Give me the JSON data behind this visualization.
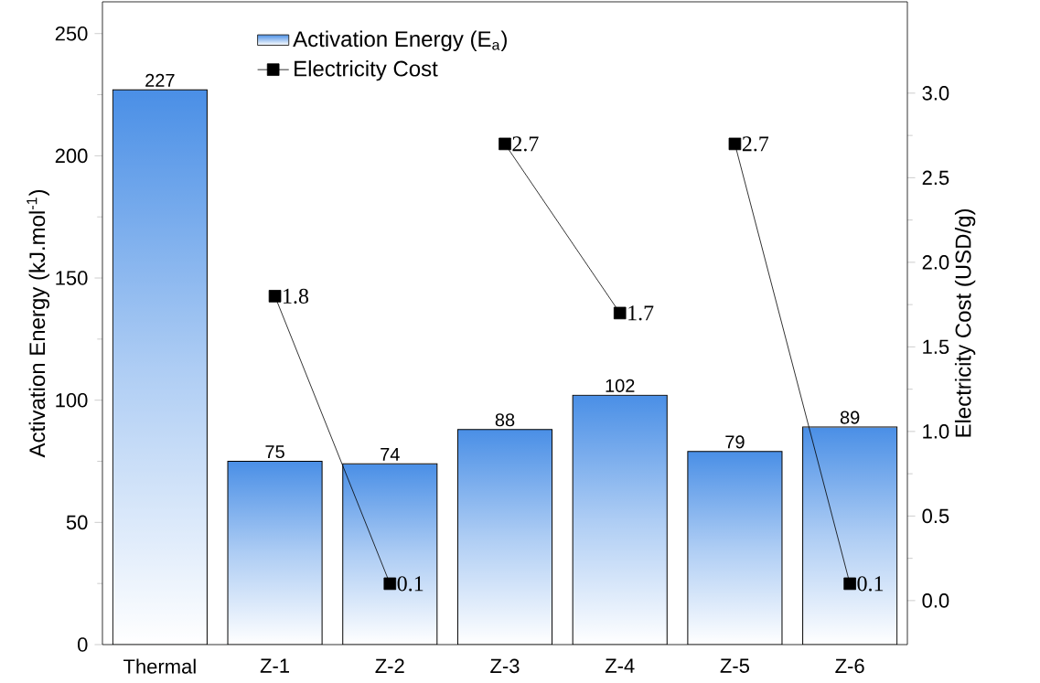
{
  "chart_data": {
    "type": "bar",
    "ylabel": "Activation Energy (kJ.mol$^{-1}$)",
    "y2label": "Electricity Cost (USD/g)",
    "categories": [
      "Thermal",
      "Z-1",
      "Z-2",
      "Z-3",
      "Z-4",
      "Z-5",
      "Z-6"
    ],
    "series": [
      {
        "name": "Activation Energy (E$_{a}$)",
        "color": "#4a8fe6",
        "values": [
          227,
          75,
          74,
          88,
          102,
          79,
          89
        ]
      },
      {
        "name": "Electricity Cost",
        "type": "line",
        "axis": "y2",
        "color": "#000000",
        "values": [
          null,
          1.8,
          0.1,
          null,
          null,
          null,
          null
        ]
      },
      {
        "type": "line",
        "axis": "y2",
        "color": "#000000",
        "values": [
          null,
          null,
          null,
          2.7,
          1.7,
          null,
          null
        ]
      },
      {
        "type": "line",
        "axis": "y2",
        "color": "#000000",
        "values": [
          null,
          null,
          null,
          null,
          null,
          2.7,
          0.1
        ]
      }
    ],
    "ylim": [
      0,
      263
    ],
    "yticks": [
      0,
      50,
      100,
      150,
      200,
      250
    ],
    "y2lim": [
      -0.26,
      3.54
    ],
    "y2ticks": [
      {
        "value": 0,
        "label": "0.0"
      },
      {
        "value": 0.5,
        "label": "0.5"
      },
      {
        "value": 1,
        "label": "1.0"
      },
      {
        "value": 1.5,
        "label": "1.5"
      },
      {
        "value": 2,
        "label": "2.0"
      },
      {
        "value": 2.5,
        "label": "2.5"
      },
      {
        "value": 3,
        "label": "3.0"
      }
    ],
    "data_labels": true,
    "marker": "square",
    "legend": "top"
  }
}
